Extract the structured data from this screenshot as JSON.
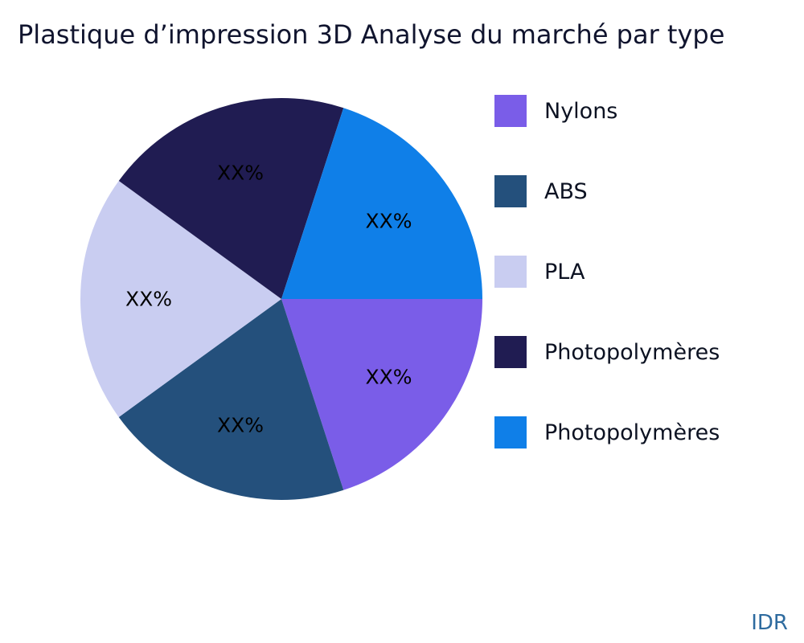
{
  "title": "Plastique d’impression 3D Analyse du marché par type",
  "watermark": "IDR",
  "chart_data": {
    "type": "pie",
    "title": "Plastique d’impression 3D Analyse du marché par type",
    "legend_position": "right",
    "start_angle_deg": 0,
    "direction": "clockwise",
    "unit": "%",
    "slices": [
      {
        "label": "Nylons",
        "value": 20,
        "value_label": "XX%",
        "color": "#7a5de8"
      },
      {
        "label": "ABS",
        "value": 20,
        "value_label": "XX%",
        "color": "#24507c"
      },
      {
        "label": "PLA",
        "value": 20,
        "value_label": "XX%",
        "color": "#c9cdf1"
      },
      {
        "label": "Photopolymères",
        "value": 20,
        "value_label": "XX%",
        "color": "#201c52"
      },
      {
        "label": "Photopolymères",
        "value": 20,
        "value_label": "XX%",
        "color": "#0f7fe8"
      }
    ]
  }
}
